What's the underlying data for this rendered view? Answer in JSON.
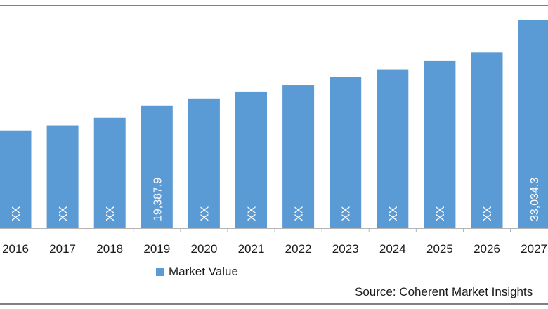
{
  "chart_data": {
    "type": "bar",
    "categories": [
      "2016",
      "2017",
      "2018",
      "2019",
      "2020",
      "2021",
      "2022",
      "2023",
      "2024",
      "2025",
      "2026",
      "2027"
    ],
    "values": [
      15500,
      16300,
      17500,
      19387.9,
      20500,
      21600,
      22700,
      23950,
      25200,
      26500,
      27900,
      33034.3
    ],
    "data_labels": [
      "XX",
      "XX",
      "XX",
      "19,387.9",
      "XX",
      "XX",
      "XX",
      "XX",
      "XX",
      "XX",
      "XX",
      "33,034.3"
    ],
    "series": [
      {
        "name": "Market Value",
        "color": "#5b9bd5"
      }
    ],
    "ylim": [
      0,
      34500
    ],
    "grid": false,
    "legend": "bottom",
    "source": "Source: Coherent Market Insights"
  }
}
